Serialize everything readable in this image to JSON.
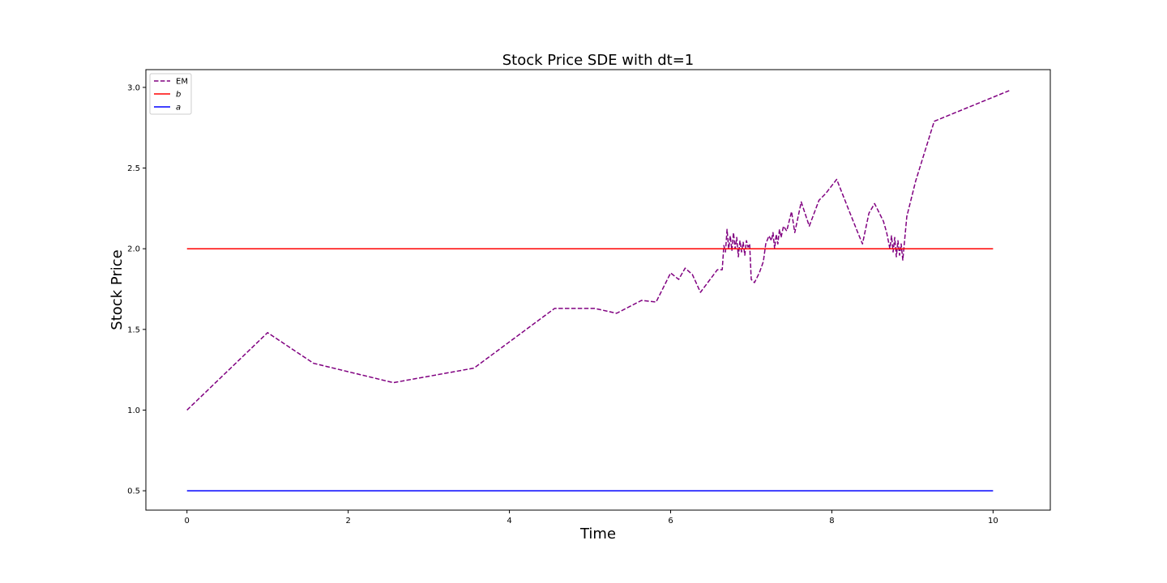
{
  "chart_data": {
    "type": "line",
    "title": "Stock Price SDE with dt=1",
    "xlabel": "Time",
    "ylabel": "Stock Price",
    "xlim": [
      -0.51,
      10.71
    ],
    "ylim": [
      0.38,
      3.11
    ],
    "xticks": [
      0,
      2,
      4,
      6,
      8,
      10
    ],
    "yticks": [
      0.5,
      1.0,
      1.5,
      2.0,
      2.5,
      3.0
    ],
    "xtick_labels": [
      "0",
      "2",
      "4",
      "6",
      "8",
      "10"
    ],
    "ytick_labels": [
      "0.5",
      "1.0",
      "1.5",
      "2.0",
      "2.5",
      "3.0"
    ],
    "grid": false,
    "legend_position": "top-left",
    "series": [
      {
        "name": "EM",
        "color": "#800080",
        "style": "dashed",
        "x": [
          0,
          1.0,
          1.57,
          2.56,
          3.56,
          4.56,
          5.06,
          5.33,
          5.64,
          5.82,
          6.0,
          6.1,
          6.18,
          6.27,
          6.37,
          6.58,
          6.64,
          6.66,
          6.68,
          6.7,
          6.72,
          6.74,
          6.76,
          6.78,
          6.8,
          6.82,
          6.84,
          6.86,
          6.88,
          6.9,
          6.92,
          6.94,
          6.96,
          6.98,
          7.0,
          7.04,
          7.1,
          7.15,
          7.18,
          7.22,
          7.25,
          7.27,
          7.29,
          7.31,
          7.33,
          7.35,
          7.37,
          7.4,
          7.44,
          7.5,
          7.54,
          7.62,
          7.72,
          7.84,
          7.92,
          8.06,
          8.21,
          8.33,
          8.38,
          8.46,
          8.53,
          8.64,
          8.68,
          8.72,
          8.74,
          8.76,
          8.78,
          8.8,
          8.82,
          8.84,
          8.86,
          8.88,
          8.93,
          9.04,
          9.27,
          10.2
        ],
        "y": [
          1.0,
          1.48,
          1.29,
          1.17,
          1.26,
          1.63,
          1.63,
          1.6,
          1.68,
          1.67,
          1.85,
          1.81,
          1.88,
          1.84,
          1.73,
          1.87,
          1.87,
          2.02,
          1.98,
          2.12,
          2.0,
          2.08,
          1.99,
          2.1,
          2.0,
          2.07,
          1.95,
          2.05,
          1.98,
          2.04,
          1.96,
          2.05,
          2.01,
          2.03,
          1.81,
          1.79,
          1.85,
          1.92,
          2.03,
          2.08,
          2.05,
          2.1,
          2.0,
          2.09,
          2.03,
          2.12,
          2.07,
          2.14,
          2.11,
          2.23,
          2.1,
          2.29,
          2.14,
          2.3,
          2.34,
          2.43,
          2.24,
          2.09,
          2.03,
          2.22,
          2.28,
          2.17,
          2.1,
          2.0,
          2.08,
          1.98,
          2.07,
          1.95,
          2.05,
          1.96,
          2.03,
          1.93,
          2.2,
          2.42,
          2.79,
          2.98
        ]
      },
      {
        "name": "b",
        "color": "#ff0000",
        "style": "solid",
        "x": [
          0,
          10
        ],
        "y": [
          2.0,
          2.0
        ]
      },
      {
        "name": "a",
        "color": "#0000ff",
        "style": "solid",
        "x": [
          0,
          10
        ],
        "y": [
          0.5,
          0.5
        ]
      }
    ]
  }
}
